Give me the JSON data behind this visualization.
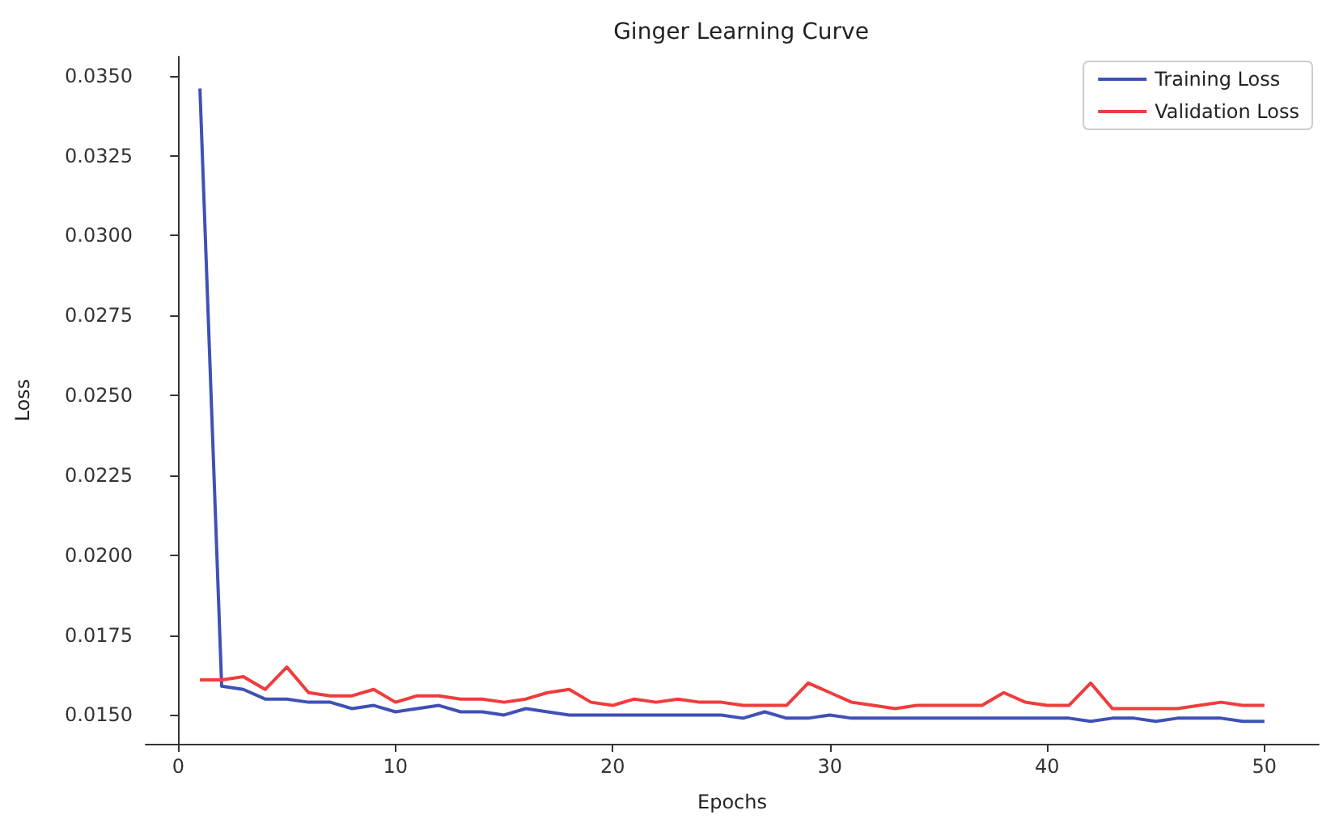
{
  "chart_data": {
    "type": "line",
    "title": "Ginger Learning Curve",
    "xlabel": "Epochs",
    "ylabel": "Loss",
    "x": [
      1,
      2,
      3,
      4,
      5,
      6,
      7,
      8,
      9,
      10,
      11,
      12,
      13,
      14,
      15,
      16,
      17,
      18,
      19,
      20,
      21,
      22,
      23,
      24,
      25,
      26,
      27,
      28,
      29,
      30,
      31,
      32,
      33,
      34,
      35,
      36,
      37,
      38,
      39,
      40,
      41,
      42,
      43,
      44,
      45,
      46,
      47,
      48,
      49,
      50
    ],
    "series": [
      {
        "name": "Training Loss",
        "color": "#3f51b5",
        "values": [
          0.0346,
          0.0159,
          0.0158,
          0.0155,
          0.0155,
          0.0154,
          0.0154,
          0.0152,
          0.0153,
          0.0151,
          0.0152,
          0.0153,
          0.0151,
          0.0151,
          0.015,
          0.0152,
          0.0151,
          0.015,
          0.015,
          0.015,
          0.015,
          0.015,
          0.015,
          0.015,
          0.015,
          0.0149,
          0.0151,
          0.0149,
          0.0149,
          0.015,
          0.0149,
          0.0149,
          0.0149,
          0.0149,
          0.0149,
          0.0149,
          0.0149,
          0.0149,
          0.0149,
          0.0149,
          0.0149,
          0.0148,
          0.0149,
          0.0149,
          0.0148,
          0.0149,
          0.0149,
          0.0149,
          0.0148,
          0.0148
        ]
      },
      {
        "name": "Validation Loss",
        "color": "#f03c3c",
        "values": [
          0.0161,
          0.0161,
          0.0162,
          0.0158,
          0.0165,
          0.0157,
          0.0156,
          0.0156,
          0.0158,
          0.0154,
          0.0156,
          0.0156,
          0.0155,
          0.0155,
          0.0154,
          0.0155,
          0.0157,
          0.0158,
          0.0154,
          0.0153,
          0.0155,
          0.0154,
          0.0155,
          0.0154,
          0.0154,
          0.0153,
          0.0153,
          0.0153,
          0.016,
          0.0157,
          0.0154,
          0.0153,
          0.0152,
          0.0153,
          0.0153,
          0.0153,
          0.0153,
          0.0157,
          0.0154,
          0.0153,
          0.0153,
          0.016,
          0.0152,
          0.0152,
          0.0152,
          0.0152,
          0.0153,
          0.0154,
          0.0153,
          0.0153
        ]
      }
    ],
    "xlim": [
      -1.5,
      52.5
    ],
    "xticks": [
      0,
      10,
      20,
      30,
      40,
      50
    ],
    "ylim": [
      0.0141,
      0.0356
    ],
    "yticks": [
      {
        "value": 0.015,
        "label": "0.0150"
      },
      {
        "value": 0.0175,
        "label": "0.0175"
      },
      {
        "value": 0.02,
        "label": "0.0200"
      },
      {
        "value": 0.0225,
        "label": "0.0225"
      },
      {
        "value": 0.025,
        "label": "0.0250"
      },
      {
        "value": 0.0275,
        "label": "0.0275"
      },
      {
        "value": 0.03,
        "label": "0.0300"
      },
      {
        "value": 0.0325,
        "label": "0.0325"
      },
      {
        "value": 0.035,
        "label": "0.0350"
      }
    ],
    "grid": false,
    "legend": "top right",
    "marker": "none",
    "line_style": "solid"
  }
}
